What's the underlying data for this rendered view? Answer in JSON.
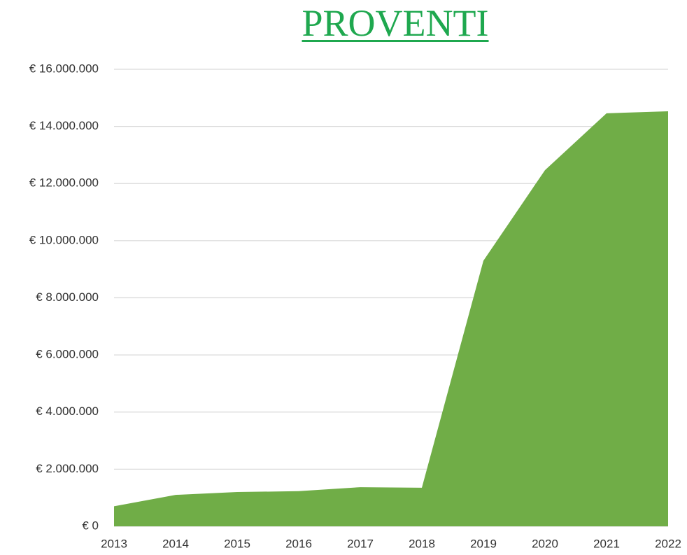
{
  "chart_data": {
    "type": "area",
    "title": "PROVENTI",
    "categories": [
      "2013",
      "2014",
      "2015",
      "2016",
      "2017",
      "2018",
      "2019",
      "2020",
      "2021",
      "2022"
    ],
    "values": [
      700000,
      1100000,
      1200000,
      1230000,
      1370000,
      1350000,
      9300000,
      12470000,
      14460000,
      14530000
    ],
    "color": "#70ad47",
    "title_color": "#1fa84f",
    "ylim": [
      0,
      16000000
    ],
    "yticks": [
      {
        "value": 0,
        "label": "€ 0"
      },
      {
        "value": 2000000,
        "label": "€ 2.000.000"
      },
      {
        "value": 4000000,
        "label": "€ 4.000.000"
      },
      {
        "value": 6000000,
        "label": "€ 6.000.000"
      },
      {
        "value": 8000000,
        "label": "€ 8.000.000"
      },
      {
        "value": 10000000,
        "label": "€ 10.000.000"
      },
      {
        "value": 12000000,
        "label": "€ 12.000.000"
      },
      {
        "value": 14000000,
        "label": "€ 14.000.000"
      },
      {
        "value": 16000000,
        "label": "€ 16.000.000"
      }
    ],
    "grid": true
  }
}
